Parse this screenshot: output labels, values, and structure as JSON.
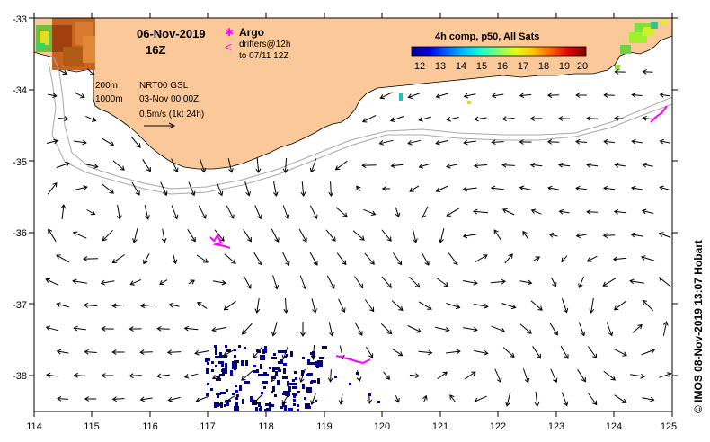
{
  "title": {
    "date": "06-Nov-2019",
    "hour": "16Z"
  },
  "legend": {
    "argo_symbol": "✱",
    "argo_label": "Argo",
    "drifter_symbol": "<",
    "drifter_label_1": "drifters@12h",
    "drifter_label_2": "to 07/11 12Z"
  },
  "info": {
    "depth1": "200m",
    "depth2": "1000m",
    "product": "NRT00 GSL",
    "date": "03-Nov 00:00Z",
    "scale_label": "0.5m/s (1kt 24h)"
  },
  "colorbar": {
    "title": "4h comp, p50, All Sats",
    "ticks": [
      "12",
      "13",
      "14",
      "15",
      "16",
      "17",
      "18",
      "19",
      "20"
    ],
    "colors": [
      "#00007f",
      "#0000e0",
      "#0060ff",
      "#00c0ff",
      "#20ffd0",
      "#80ff70",
      "#e0ff10",
      "#ffc000",
      "#ff6000",
      "#e00000",
      "#800000"
    ]
  },
  "axes": {
    "x_ticks": [
      "114",
      "115",
      "116",
      "117",
      "118",
      "119",
      "120",
      "121",
      "122",
      "123",
      "124",
      "125"
    ],
    "y_ticks": [
      "-33",
      "-34",
      "-35",
      "-36",
      "-37",
      "-38"
    ]
  },
  "credit": "© IMOS 08-Nov-2019 13:07 Hobart",
  "colors": {
    "land": "#fbc89a",
    "argo": "#ff00ff",
    "drifter": "#ff00ff",
    "isobath": "#a8a8a8"
  }
}
